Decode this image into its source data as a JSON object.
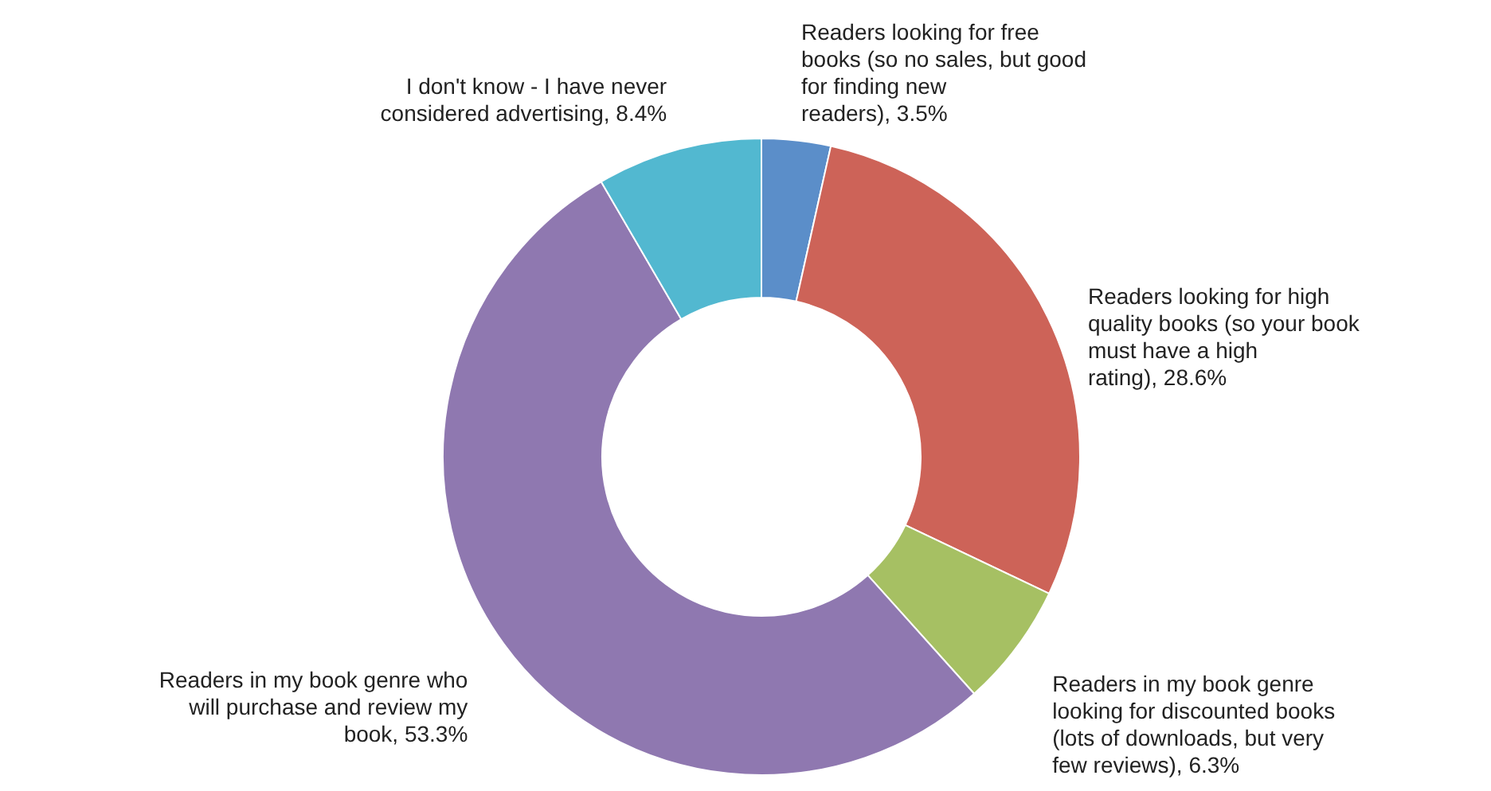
{
  "chart_data": {
    "type": "donut",
    "categories": [
      "Readers looking for free books (so no sales, but good for finding new readers)",
      "Readers looking for high quality books (so your book must have a high rating)",
      "Readers in my book genre looking for discounted books (lots of downloads, but very few reviews)",
      "Readers in my book genre who will purchase and review my book",
      "I don't know - I have never considered advertising"
    ],
    "values": [
      3.5,
      28.6,
      6.3,
      53.3,
      8.4
    ],
    "value_labels": [
      "3.5%",
      "28.6%",
      "6.3%",
      "53.3%",
      "8.4%"
    ],
    "colors": [
      "#5b8ec9",
      "#cd6358",
      "#a6c063",
      "#8f78b0",
      "#52b8d0"
    ]
  }
}
